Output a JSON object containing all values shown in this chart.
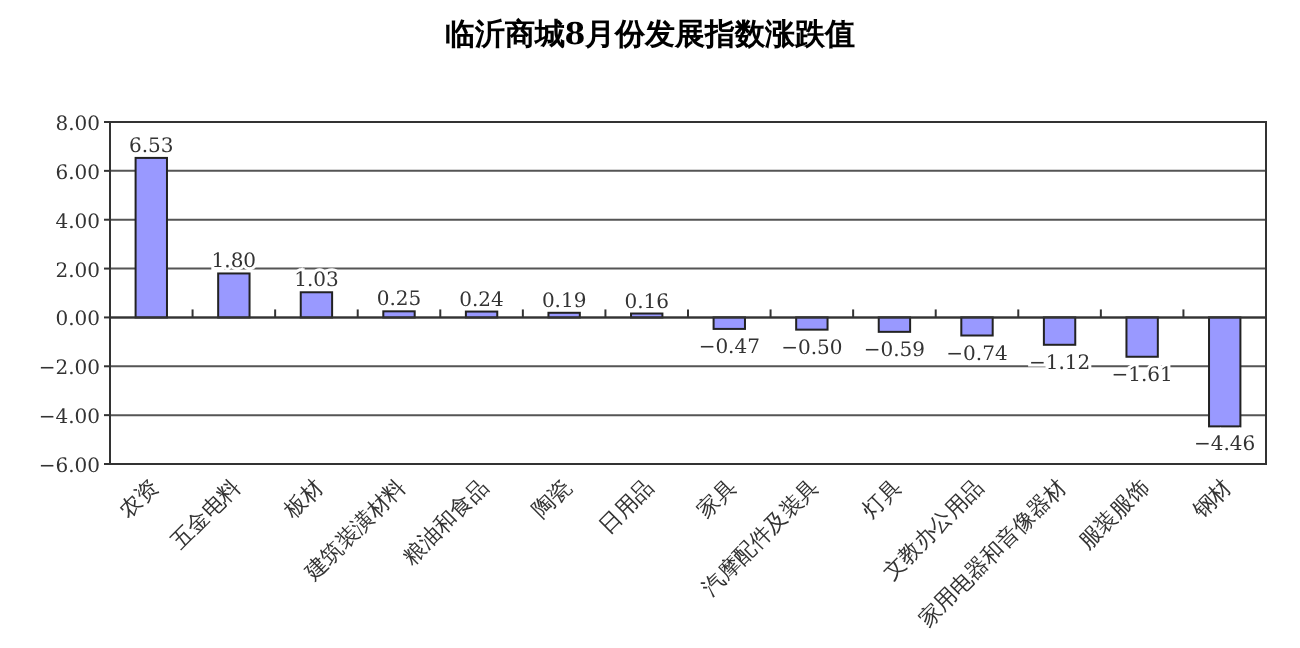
{
  "chart_data": {
    "type": "bar",
    "title": "临沂商城8月份发展指数涨跌值",
    "categories": [
      "农资",
      "五金电料",
      "板材",
      "建筑装潢材料",
      "粮油和食品",
      "陶瓷",
      "日用品",
      "家具",
      "汽摩配件及装具",
      "灯具",
      "文教办公用品",
      "家用电器和音像器材",
      "服装服饰",
      "钢材"
    ],
    "values": [
      6.53,
      1.8,
      1.03,
      0.25,
      0.24,
      0.19,
      0.16,
      -0.47,
      -0.5,
      -0.59,
      -0.74,
      -1.12,
      -1.61,
      -4.46
    ],
    "value_labels": [
      "6.53",
      "1.80",
      "1.03",
      "0.25",
      "0.24",
      "0.19",
      "0.16",
      "−0.47",
      "−0.50",
      "−0.59",
      "−0.74",
      "−1.12",
      "−1.61",
      "−4.46"
    ],
    "color": "#9999ff",
    "ylim": [
      -6,
      8
    ],
    "yticks": [
      {
        "value": 8,
        "label": "8.00"
      },
      {
        "value": 6,
        "label": "6.00"
      },
      {
        "value": 4,
        "label": "4.00"
      },
      {
        "value": 2,
        "label": "2.00"
      },
      {
        "value": 0,
        "label": "0.00"
      },
      {
        "value": -2,
        "label": "−2.00"
      },
      {
        "value": -4,
        "label": "−4.00"
      },
      {
        "value": -6,
        "label": "−6.00"
      }
    ],
    "grid": "y"
  }
}
